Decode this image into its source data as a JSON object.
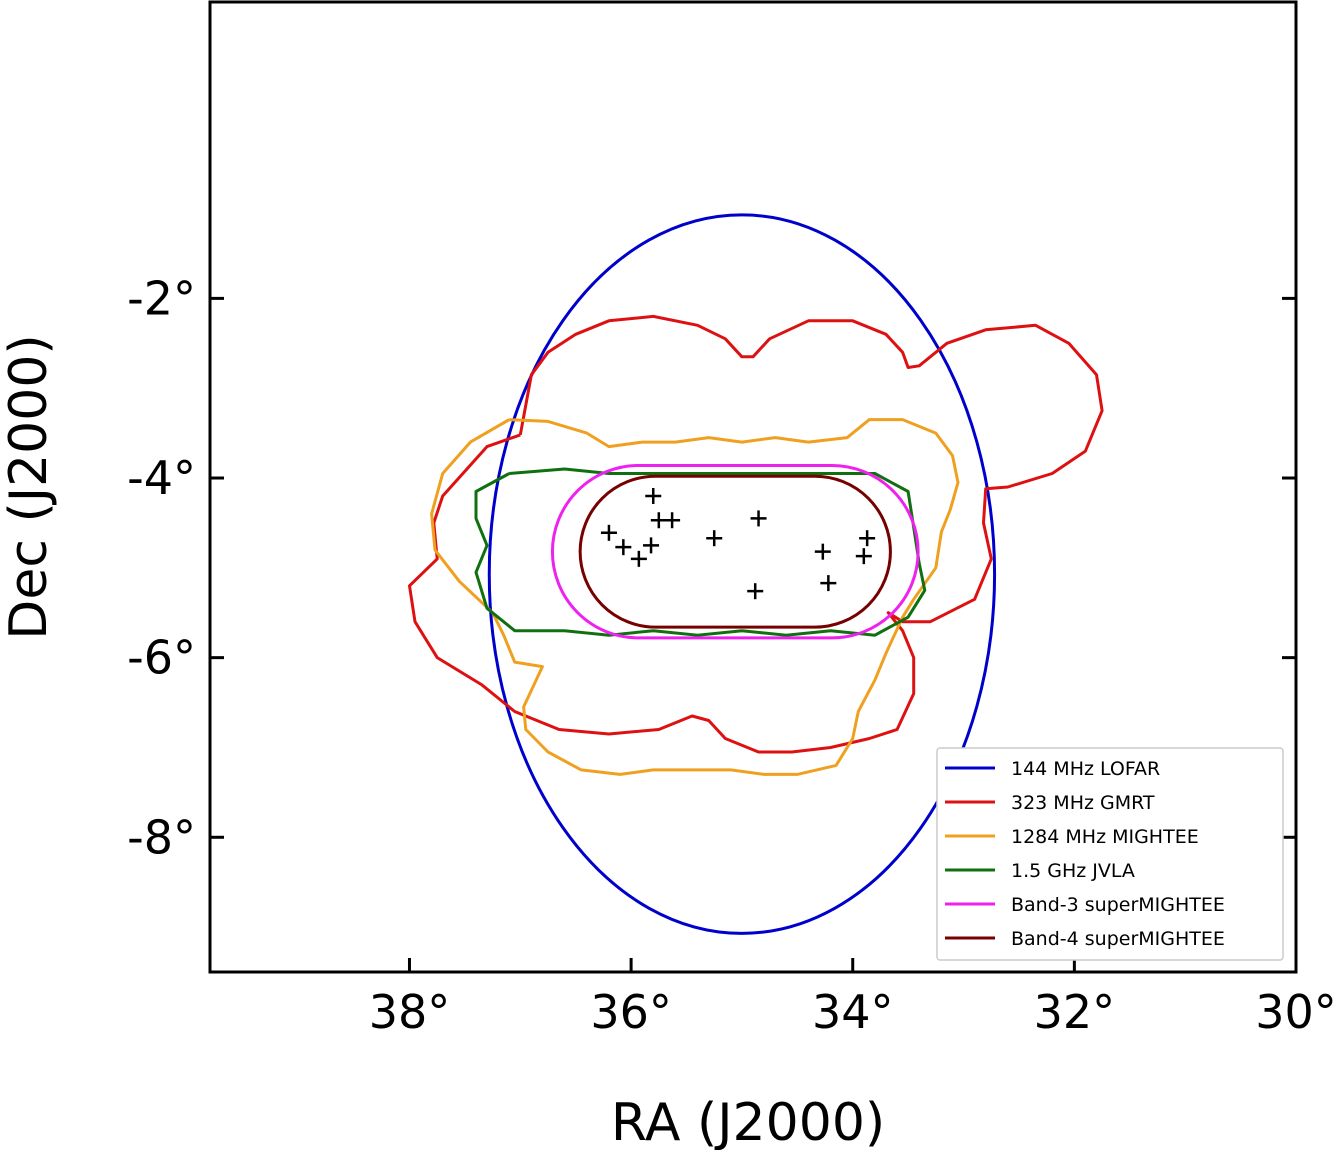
{
  "chart_data": {
    "type": "line",
    "title": "",
    "xlabel": "RA (J2000)",
    "ylabel": "Dec (J2000)",
    "xlim": [
      39.8,
      30.0
    ],
    "ylim": [
      -9.5,
      1.3
    ],
    "x_inverted": true,
    "x_ticks": [
      38,
      36,
      34,
      32,
      30
    ],
    "x_tick_labels": [
      "38°",
      "36°",
      "34°",
      "32°",
      "30°"
    ],
    "y_ticks": [
      -2,
      -4,
      -6,
      -8
    ],
    "y_tick_labels": [
      "-2°",
      "-4°",
      "-6°",
      "-8°"
    ],
    "grid": false,
    "legend": {
      "placement": "bottom-right"
    },
    "series": [
      {
        "name": "144 MHz LOFAR",
        "color": "#0000cc",
        "ellipse": {
          "center": [
            35.0,
            -5.07
          ],
          "rx": 2.28,
          "ry": 4.0
        }
      },
      {
        "name": "323 MHz GMRT",
        "color": "#dd1111",
        "points": [
          [
            37.0,
            -3.52
          ],
          [
            36.9,
            -2.85
          ],
          [
            36.75,
            -2.6
          ],
          [
            36.5,
            -2.4
          ],
          [
            36.2,
            -2.25
          ],
          [
            35.8,
            -2.2
          ],
          [
            35.4,
            -2.3
          ],
          [
            35.15,
            -2.45
          ],
          [
            35.0,
            -2.65
          ],
          [
            34.9,
            -2.65
          ],
          [
            34.75,
            -2.45
          ],
          [
            34.4,
            -2.25
          ],
          [
            34.0,
            -2.25
          ],
          [
            33.7,
            -2.4
          ],
          [
            33.55,
            -2.6
          ],
          [
            33.5,
            -2.77
          ],
          [
            33.4,
            -2.75
          ],
          [
            33.15,
            -2.5
          ],
          [
            32.8,
            -2.35
          ],
          [
            32.35,
            -2.3
          ],
          [
            32.05,
            -2.5
          ],
          [
            31.8,
            -2.85
          ],
          [
            31.75,
            -3.25
          ],
          [
            31.9,
            -3.7
          ],
          [
            32.2,
            -3.95
          ],
          [
            32.6,
            -4.1
          ],
          [
            32.8,
            -4.12
          ],
          [
            32.82,
            -4.5
          ],
          [
            32.75,
            -4.9
          ],
          [
            32.9,
            -5.35
          ],
          [
            33.3,
            -5.6
          ],
          [
            33.55,
            -5.6
          ],
          [
            33.68,
            -5.5
          ],
          [
            33.55,
            -5.7
          ],
          [
            33.45,
            -6.0
          ],
          [
            33.45,
            -6.4
          ],
          [
            33.6,
            -6.8
          ],
          [
            33.85,
            -6.9
          ],
          [
            34.2,
            -7.0
          ],
          [
            34.55,
            -7.05
          ],
          [
            34.85,
            -7.05
          ],
          [
            35.15,
            -6.9
          ],
          [
            35.3,
            -6.7
          ],
          [
            35.45,
            -6.65
          ],
          [
            35.75,
            -6.8
          ],
          [
            36.2,
            -6.85
          ],
          [
            36.65,
            -6.8
          ],
          [
            37.05,
            -6.6
          ],
          [
            37.35,
            -6.3
          ],
          [
            37.75,
            -6.0
          ],
          [
            37.95,
            -5.6
          ],
          [
            38.0,
            -5.2
          ],
          [
            37.75,
            -4.9
          ],
          [
            37.78,
            -4.5
          ],
          [
            37.7,
            -4.2
          ],
          [
            37.3,
            -3.65
          ],
          [
            37.0,
            -3.52
          ]
        ]
      },
      {
        "name": "1284 MHz MIGHTEE",
        "color": "#f0a020",
        "points": [
          [
            37.1,
            -3.35
          ],
          [
            36.75,
            -3.37
          ],
          [
            36.4,
            -3.5
          ],
          [
            36.2,
            -3.65
          ],
          [
            35.9,
            -3.6
          ],
          [
            35.6,
            -3.6
          ],
          [
            35.3,
            -3.55
          ],
          [
            35.0,
            -3.6
          ],
          [
            34.7,
            -3.55
          ],
          [
            34.4,
            -3.6
          ],
          [
            34.05,
            -3.55
          ],
          [
            33.85,
            -3.35
          ],
          [
            33.55,
            -3.35
          ],
          [
            33.25,
            -3.5
          ],
          [
            33.1,
            -3.75
          ],
          [
            33.05,
            -4.05
          ],
          [
            33.12,
            -4.35
          ],
          [
            33.2,
            -4.6
          ],
          [
            33.25,
            -5.0
          ],
          [
            33.45,
            -5.35
          ],
          [
            33.55,
            -5.55
          ],
          [
            33.7,
            -5.95
          ],
          [
            33.8,
            -6.25
          ],
          [
            33.95,
            -6.6
          ],
          [
            34.0,
            -6.9
          ],
          [
            34.15,
            -7.2
          ],
          [
            34.5,
            -7.3
          ],
          [
            34.8,
            -7.3
          ],
          [
            35.1,
            -7.25
          ],
          [
            35.45,
            -7.25
          ],
          [
            35.8,
            -7.25
          ],
          [
            36.1,
            -7.3
          ],
          [
            36.45,
            -7.25
          ],
          [
            36.75,
            -7.05
          ],
          [
            36.95,
            -6.8
          ],
          [
            36.97,
            -6.55
          ],
          [
            36.8,
            -6.1
          ],
          [
            37.05,
            -6.05
          ],
          [
            37.15,
            -5.75
          ],
          [
            37.25,
            -5.5
          ],
          [
            37.55,
            -5.15
          ],
          [
            37.77,
            -4.8
          ],
          [
            37.8,
            -4.4
          ],
          [
            37.7,
            -3.95
          ],
          [
            37.45,
            -3.6
          ],
          [
            37.1,
            -3.35
          ]
        ]
      },
      {
        "name": "1.5 GHz JVLA",
        "color": "#107010",
        "points": [
          [
            37.1,
            -3.95
          ],
          [
            36.6,
            -3.9
          ],
          [
            36.2,
            -3.95
          ],
          [
            35.8,
            -3.95
          ],
          [
            35.4,
            -3.95
          ],
          [
            35.0,
            -3.95
          ],
          [
            34.6,
            -3.95
          ],
          [
            34.2,
            -3.95
          ],
          [
            33.8,
            -3.95
          ],
          [
            33.5,
            -4.15
          ],
          [
            33.45,
            -4.55
          ],
          [
            33.4,
            -4.95
          ],
          [
            33.35,
            -5.25
          ],
          [
            33.5,
            -5.55
          ],
          [
            33.8,
            -5.75
          ],
          [
            34.2,
            -5.7
          ],
          [
            34.6,
            -5.75
          ],
          [
            35.0,
            -5.7
          ],
          [
            35.4,
            -5.75
          ],
          [
            35.8,
            -5.7
          ],
          [
            36.2,
            -5.75
          ],
          [
            36.6,
            -5.7
          ],
          [
            37.05,
            -5.7
          ],
          [
            37.3,
            -5.45
          ],
          [
            37.4,
            -5.05
          ],
          [
            37.3,
            -4.75
          ],
          [
            37.4,
            -4.45
          ],
          [
            37.4,
            -4.15
          ],
          [
            37.1,
            -3.95
          ]
        ]
      },
      {
        "name": "Band-3 superMIGHTEE",
        "color": "#ee22ee",
        "capsule": {
          "center": [
            35.06,
            -4.82
          ],
          "half_width": 1.65,
          "half_height": 0.96
        }
      },
      {
        "name": "Band-4 superMIGHTEE",
        "color": "#770000",
        "capsule": {
          "center": [
            35.06,
            -4.82
          ],
          "half_width": 1.4,
          "half_height": 0.84
        }
      }
    ],
    "markers": {
      "symbol": "+",
      "color": "#000000",
      "points": [
        [
          35.8,
          -4.2
        ],
        [
          35.75,
          -4.47
        ],
        [
          35.63,
          -4.47
        ],
        [
          34.85,
          -4.45
        ],
        [
          36.2,
          -4.61
        ],
        [
          35.25,
          -4.67
        ],
        [
          36.07,
          -4.77
        ],
        [
          35.82,
          -4.75
        ],
        [
          35.93,
          -4.9
        ],
        [
          33.87,
          -4.67
        ],
        [
          34.27,
          -4.82
        ],
        [
          33.9,
          -4.87
        ],
        [
          34.22,
          -5.17
        ],
        [
          34.88,
          -5.26
        ]
      ]
    }
  }
}
